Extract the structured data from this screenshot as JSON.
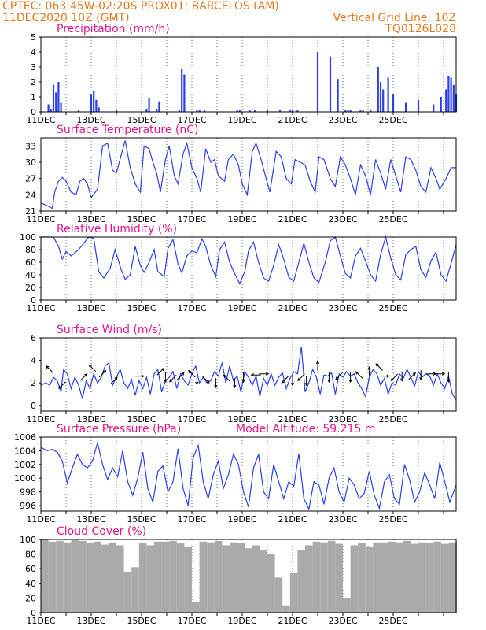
{
  "header": {
    "line1": "CPTEC:   063:45W-02:20S   PROX01: BARCELOS (AM)",
    "line2_left": "11DEC2020 10Z (GMT)",
    "line2_right": "Vertical Grid Line: 10Z",
    "line3_right": "TQ0126L028"
  },
  "colors": {
    "series": "#2a3fe6",
    "cloud": "#aaaaaa",
    "title": "#e0148c",
    "header": "#e07a1c"
  },
  "chart_data": [
    {
      "type": "bar",
      "title": "Precipitation (mm/h)",
      "ylim": [
        0,
        5
      ],
      "yticks": [
        "0",
        "1",
        "2",
        "3",
        "4",
        "5"
      ],
      "xticks": [
        "11DEC",
        "13DEC",
        "15DEC",
        "17DEC",
        "19DEC",
        "21DEC",
        "23DEC",
        "25DEC"
      ],
      "x": [
        0.3,
        0.4,
        0.5,
        0.6,
        0.7,
        0.8,
        1.5,
        2.0,
        2.1,
        2.2,
        2.3,
        3.0,
        4.2,
        4.3,
        4.6,
        4.7,
        5.5,
        5.6,
        5.7,
        6.2,
        6.3,
        6.5,
        7.8,
        7.9,
        8.3,
        8.5,
        9.0,
        9.5,
        9.9,
        10.0,
        10.2,
        11.0,
        11.5,
        11.8,
        12.1,
        12.2,
        12.3,
        12.7,
        12.8,
        13.1,
        13.4,
        13.5,
        13.6,
        13.8,
        14.0,
        14.5,
        15.0,
        15.6,
        15.9,
        16.1,
        16.2,
        16.3,
        16.4,
        16.5
      ],
      "values": [
        0.5,
        0.2,
        1.8,
        1.3,
        2.0,
        0.6,
        0.1,
        1.2,
        1.4,
        0.8,
        0.3,
        0.1,
        0.2,
        0.9,
        0.2,
        0.7,
        0.1,
        2.9,
        2.5,
        0.1,
        0.1,
        0.1,
        0.1,
        0.1,
        0.1,
        0.1,
        0.1,
        0.1,
        0.1,
        0.1,
        0.1,
        4.0,
        3.7,
        2.2,
        0.1,
        0.1,
        0.1,
        0.1,
        0.1,
        0.1,
        3.0,
        2.0,
        1.5,
        2.3,
        1.2,
        0.6,
        0.8,
        0.5,
        1.0,
        1.5,
        2.4,
        2.3,
        1.8,
        1.2
      ]
    },
    {
      "type": "line",
      "title": "Surface Temperature (nC)",
      "ylim": [
        21,
        34.5
      ],
      "yticks": [
        "21",
        "24",
        "27",
        "30",
        "33"
      ],
      "xticks": [
        "11DEC",
        "13DEC",
        "15DEC",
        "17DEC",
        "19DEC",
        "21DEC",
        "23DEC",
        "25DEC"
      ],
      "x": [
        0,
        0.25,
        0.45,
        0.55,
        0.7,
        0.85,
        1.0,
        1.2,
        1.4,
        1.55,
        1.7,
        1.85,
        2.0,
        2.25,
        2.45,
        2.65,
        2.85,
        3.0,
        3.2,
        3.35,
        3.55,
        3.75,
        3.95,
        4.1,
        4.3,
        4.45,
        4.6,
        4.75,
        4.95,
        5.1,
        5.3,
        5.45,
        5.65,
        5.8,
        6.0,
        6.2,
        6.35,
        6.55,
        6.75,
        6.9,
        7.05,
        7.3,
        7.45,
        7.65,
        7.85,
        8.0,
        8.2,
        8.4,
        8.55,
        8.75,
        8.95,
        9.1,
        9.35,
        9.55,
        9.75,
        9.95,
        10.1,
        10.3,
        10.5,
        10.7,
        10.9,
        11.05,
        11.25,
        11.5,
        11.7,
        11.9,
        12.1,
        12.3,
        12.5,
        12.7,
        12.9,
        13.1,
        13.3,
        13.5,
        13.7,
        13.9,
        14.1,
        14.3,
        14.5,
        14.7,
        14.9,
        15.1,
        15.3,
        15.5,
        15.7,
        15.85,
        16.1,
        16.3,
        16.5
      ],
      "values": [
        22.5,
        22.0,
        21.5,
        24.5,
        26.5,
        27.2,
        26.5,
        24.5,
        24.0,
        26.5,
        27.0,
        26.0,
        23.5,
        25.0,
        33.0,
        33.5,
        28.5,
        28.0,
        31.5,
        34.0,
        29.0,
        26.0,
        24.5,
        33.0,
        32.5,
        30.0,
        28.0,
        24.5,
        30.5,
        33.0,
        27.5,
        26.0,
        31.5,
        33.5,
        29.0,
        27.0,
        24.5,
        32.5,
        30.0,
        30.5,
        27.5,
        26.5,
        30.5,
        31.5,
        29.5,
        26.0,
        24.0,
        32.0,
        33.5,
        30.5,
        27.0,
        24.5,
        32.0,
        31.0,
        27.0,
        26.0,
        30.5,
        30.0,
        29.5,
        26.5,
        24.5,
        31.0,
        30.5,
        27.0,
        25.5,
        31.0,
        29.5,
        27.0,
        24.0,
        29.5,
        27.5,
        24.0,
        30.5,
        28.0,
        25.0,
        30.5,
        27.5,
        24.5,
        31.0,
        30.5,
        28.5,
        25.5,
        24.5,
        29.0,
        27.0,
        25.0,
        27.0,
        29.0,
        29.0
      ]
    },
    {
      "type": "line",
      "title": "Relative Humidity (%)",
      "ylim": [
        0,
        100
      ],
      "yticks": [
        "0",
        "20",
        "40",
        "60",
        "80",
        "100"
      ],
      "xticks": [
        "11DEC",
        "13DEC",
        "15DEC",
        "17DEC",
        "19DEC",
        "21DEC",
        "23DEC",
        "25DEC"
      ],
      "x": [
        0,
        0.3,
        0.5,
        0.7,
        0.85,
        1.0,
        1.2,
        1.5,
        1.7,
        1.9,
        2.1,
        2.3,
        2.5,
        2.75,
        2.95,
        3.2,
        3.35,
        3.55,
        3.75,
        3.95,
        4.1,
        4.3,
        4.5,
        4.65,
        4.9,
        5.05,
        5.25,
        5.45,
        5.6,
        5.8,
        6.0,
        6.2,
        6.4,
        6.55,
        6.75,
        6.95,
        7.1,
        7.3,
        7.5,
        7.7,
        7.9,
        8.1,
        8.25,
        8.45,
        8.65,
        8.85,
        9.05,
        9.25,
        9.45,
        9.65,
        9.85,
        10.05,
        10.25,
        10.45,
        10.65,
        10.85,
        11.05,
        11.3,
        11.5,
        11.7,
        11.9,
        12.1,
        12.3,
        12.5,
        12.7,
        12.9,
        13.1,
        13.3,
        13.5,
        13.7,
        13.9,
        14.1,
        14.3,
        14.5,
        14.7,
        14.9,
        15.1,
        15.3,
        15.5,
        15.7,
        15.9,
        16.1,
        16.3,
        16.5
      ],
      "values": [
        100,
        100,
        100,
        85,
        65,
        77,
        70,
        80,
        90,
        100,
        98,
        45,
        35,
        50,
        80,
        47,
        33,
        40,
        85,
        55,
        44,
        60,
        80,
        45,
        37,
        82,
        96,
        57,
        43,
        70,
        78,
        75,
        97,
        85,
        55,
        37,
        80,
        92,
        60,
        42,
        26,
        45,
        78,
        92,
        60,
        35,
        30,
        55,
        88,
        65,
        36,
        30,
        60,
        90,
        60,
        35,
        28,
        60,
        94,
        100,
        70,
        42,
        35,
        70,
        82,
        62,
        40,
        30,
        72,
        100,
        67,
        40,
        32,
        72,
        80,
        85,
        48,
        36,
        62,
        76,
        40,
        30,
        58,
        88
      ]
    },
    {
      "type": "line",
      "title": "Surface Wind (m/s)",
      "ylim": [
        -0.5,
        6
      ],
      "yticks": [
        "0",
        "2",
        "4",
        "6"
      ],
      "xticks": [
        "11DEC",
        "13DEC",
        "15DEC",
        "17DEC",
        "19DEC",
        "21DEC",
        "23DEC",
        "25DEC"
      ],
      "x": [
        0,
        0.2,
        0.35,
        0.5,
        0.65,
        0.8,
        0.9,
        1.05,
        1.2,
        1.35,
        1.5,
        1.65,
        1.8,
        1.95,
        2.1,
        2.25,
        2.4,
        2.55,
        2.7,
        2.85,
        3.0,
        3.15,
        3.3,
        3.45,
        3.6,
        3.75,
        3.9,
        4.05,
        4.2,
        4.35,
        4.5,
        4.65,
        4.8,
        4.95,
        5.1,
        5.25,
        5.4,
        5.55,
        5.7,
        5.85,
        6.0,
        6.15,
        6.3,
        6.45,
        6.6,
        6.75,
        6.9,
        7.05,
        7.2,
        7.35,
        7.5,
        7.65,
        7.8,
        7.95,
        8.1,
        8.25,
        8.4,
        8.55,
        8.7,
        8.85,
        9.0,
        9.15,
        9.3,
        9.45,
        9.6,
        9.75,
        9.9,
        10.05,
        10.2,
        10.35,
        10.5,
        10.65,
        10.8,
        10.95,
        11.1,
        11.25,
        11.4,
        11.55,
        11.7,
        11.85,
        12.0,
        12.15,
        12.3,
        12.45,
        12.6,
        12.75,
        12.9,
        13.05,
        13.2,
        13.35,
        13.5,
        13.65,
        13.8,
        13.95,
        14.1,
        14.25,
        14.4,
        14.55,
        14.7,
        14.85,
        15.0,
        15.15,
        15.3,
        15.45,
        15.6,
        15.75,
        15.9,
        16.05,
        16.2,
        16.35,
        16.5
      ],
      "values": [
        1.8,
        2.0,
        1.8,
        2.5,
        2.2,
        1.2,
        3.2,
        2.8,
        1.5,
        2.5,
        1.8,
        0.6,
        2.2,
        1.5,
        2.8,
        2.0,
        2.5,
        3.5,
        3.8,
        1.8,
        2.5,
        3.2,
        2.0,
        1.5,
        2.3,
        0.9,
        2.2,
        1.5,
        2.5,
        1.0,
        2.8,
        3.2,
        1.2,
        2.2,
        2.5,
        3.0,
        1.5,
        2.8,
        2.2,
        1.8,
        2.8,
        3.5,
        2.0,
        2.5,
        2.0,
        2.2,
        3.0,
        2.6,
        3.8,
        2.0,
        3.5,
        2.2,
        2.6,
        1.2,
        3.0,
        2.5,
        1.8,
        2.6,
        0.8,
        2.4,
        1.8,
        2.8,
        1.8,
        2.5,
        2.9,
        1.5,
        2.4,
        3.0,
        2.8,
        5.2,
        1.2,
        2.0,
        3.2,
        2.5,
        1.0,
        2.7,
        2.6,
        2.9,
        1.0,
        2.8,
        2.5,
        3.0,
        2.6,
        2.8,
        2.0,
        1.5,
        0.8,
        2.5,
        3.2,
        2.8,
        1.8,
        2.4,
        1.0,
        2.0,
        1.8,
        2.8,
        2.4,
        3.2,
        2.5,
        1.7,
        3.0,
        2.5,
        2.8,
        2.6,
        1.8,
        2.8,
        2.0,
        1.5,
        2.6,
        1.0,
        0.5
      ],
      "arrows": [
        {
          "x": 0.35,
          "y": 3.2,
          "dir": "nw"
        },
        {
          "x": 0.85,
          "y": 1.8,
          "dir": "sw"
        },
        {
          "x": 1.7,
          "y": 2.5,
          "dir": "ne"
        },
        {
          "x": 2.05,
          "y": 3.3,
          "dir": "nw"
        },
        {
          "x": 2.45,
          "y": 2.8,
          "dir": "ne"
        },
        {
          "x": 2.9,
          "y": 2.2,
          "dir": "ne"
        },
        {
          "x": 3.9,
          "y": 2.6,
          "dir": "e"
        },
        {
          "x": 4.75,
          "y": 3.0,
          "dir": "ne"
        },
        {
          "x": 4.95,
          "y": 2.5,
          "dir": "s"
        },
        {
          "x": 5.25,
          "y": 2.4,
          "dir": "sw"
        },
        {
          "x": 5.55,
          "y": 2.6,
          "dir": "ne"
        },
        {
          "x": 6.0,
          "y": 2.8,
          "dir": "nw"
        },
        {
          "x": 6.2,
          "y": 2.3,
          "dir": "s"
        },
        {
          "x": 6.55,
          "y": 2.3,
          "dir": "se"
        },
        {
          "x": 6.95,
          "y": 2.0,
          "dir": "s"
        },
        {
          "x": 7.4,
          "y": 2.4,
          "dir": "nw"
        },
        {
          "x": 7.7,
          "y": 2.0,
          "dir": "s"
        },
        {
          "x": 8.05,
          "y": 2.5,
          "dir": "s"
        },
        {
          "x": 8.55,
          "y": 2.7,
          "dir": "w"
        },
        {
          "x": 8.85,
          "y": 2.8,
          "dir": "e"
        },
        {
          "x": 9.7,
          "y": 2.3,
          "dir": "sw"
        },
        {
          "x": 10.0,
          "y": 2.2,
          "dir": "s"
        },
        {
          "x": 10.35,
          "y": 2.5,
          "dir": "sw"
        },
        {
          "x": 10.55,
          "y": 2.2,
          "dir": "s"
        },
        {
          "x": 11.0,
          "y": 3.5,
          "dir": "n"
        },
        {
          "x": 11.45,
          "y": 2.5,
          "dir": "s"
        },
        {
          "x": 11.85,
          "y": 2.6,
          "dir": "sw"
        },
        {
          "x": 12.3,
          "y": 2.5,
          "dir": "s"
        },
        {
          "x": 12.65,
          "y": 2.7,
          "dir": "nw"
        },
        {
          "x": 13.05,
          "y": 3.0,
          "dir": "n"
        },
        {
          "x": 13.45,
          "y": 3.4,
          "dir": "nw"
        },
        {
          "x": 13.65,
          "y": 2.6,
          "dir": "e"
        },
        {
          "x": 14.05,
          "y": 2.5,
          "dir": "sw"
        },
        {
          "x": 14.35,
          "y": 2.6,
          "dir": "s"
        },
        {
          "x": 14.75,
          "y": 2.6,
          "dir": "ne"
        },
        {
          "x": 15.1,
          "y": 2.7,
          "dir": "s"
        },
        {
          "x": 15.5,
          "y": 2.8,
          "dir": "e"
        },
        {
          "x": 15.85,
          "y": 2.8,
          "dir": "e"
        },
        {
          "x": 16.2,
          "y": 2.5,
          "dir": "s"
        }
      ]
    },
    {
      "type": "line",
      "title": "Surface Pressure (hPa)",
      "subtitle": "Model Altitude: 59.215 m",
      "ylim": [
        995.2,
        1006
      ],
      "yticks": [
        "996",
        "998",
        "1000",
        "1002",
        "1004",
        "1006"
      ],
      "xticks": [
        "11DEC",
        "13DEC",
        "15DEC",
        "17DEC",
        "19DEC",
        "21DEC",
        "23DEC",
        "25DEC"
      ],
      "x": [
        0,
        0.25,
        0.45,
        0.65,
        0.85,
        1.05,
        1.25,
        1.45,
        1.65,
        1.85,
        2.05,
        2.25,
        2.45,
        2.65,
        2.85,
        3.05,
        3.25,
        3.45,
        3.65,
        3.85,
        4.05,
        4.25,
        4.45,
        4.65,
        4.85,
        5.05,
        5.25,
        5.45,
        5.65,
        5.85,
        6.05,
        6.25,
        6.45,
        6.65,
        6.85,
        7.05,
        7.25,
        7.45,
        7.65,
        7.85,
        8.05,
        8.25,
        8.45,
        8.65,
        8.85,
        9.05,
        9.25,
        9.45,
        9.65,
        9.85,
        10.05,
        10.25,
        10.45,
        10.65,
        10.85,
        11.05,
        11.25,
        11.45,
        11.65,
        11.85,
        12.05,
        12.25,
        12.45,
        12.65,
        12.85,
        13.05,
        13.25,
        13.45,
        13.65,
        13.85,
        14.05,
        14.25,
        14.45,
        14.65,
        14.85,
        15.05,
        15.25,
        15.45,
        15.65,
        15.85,
        16.05,
        16.25,
        16.5
      ],
      "values": [
        1004.5,
        1004.0,
        1004.2,
        1003.8,
        1002.5,
        999.3,
        1001.5,
        1003.5,
        1002.0,
        1001.5,
        1002.5,
        1005.2,
        1002.0,
        999.8,
        1001.5,
        1000.2,
        1004.0,
        999.5,
        997.5,
        1000.0,
        1003.8,
        998.5,
        996.5,
        1001.0,
        1001.8,
        998.0,
        999.5,
        1004.3,
        998.5,
        996.0,
        1003.0,
        1004.8,
        999.5,
        997.0,
        1000.5,
        1002.5,
        998.5,
        1000.5,
        1003.5,
        1002.0,
        998.0,
        995.8,
        1001.5,
        1003.5,
        998.0,
        997.0,
        1002.0,
        999.5,
        997.0,
        999.5,
        998.8,
        1003.6,
        997.0,
        995.5,
        999.5,
        999.0,
        996.2,
        1000.0,
        1001.5,
        998.0,
        996.5,
        1000.0,
        999.0,
        997.0,
        997.8,
        1001.0,
        997.5,
        995.6,
        999.5,
        1000.5,
        997.0,
        996.2,
        1002.0,
        999.8,
        996.5,
        998.0,
        1000.8,
        999.0,
        997.0,
        1002.3,
        999.5,
        996.5,
        999.0
      ]
    },
    {
      "type": "bar",
      "title": "Cloud Cover (%)",
      "ylim": [
        0,
        100
      ],
      "yticks": [
        "0",
        "20",
        "40",
        "60",
        "80",
        "100"
      ],
      "xticks": [
        "11DEC",
        "13DEC",
        "15DEC",
        "17DEC",
        "19DEC",
        "21DEC",
        "23DEC",
        "25DEC"
      ],
      "x": [
        0,
        0.3,
        0.6,
        0.9,
        1.2,
        1.5,
        1.8,
        2.1,
        2.4,
        2.7,
        3.0,
        3.3,
        3.6,
        3.9,
        4.2,
        4.5,
        4.8,
        5.1,
        5.4,
        5.7,
        6.0,
        6.3,
        6.6,
        6.9,
        7.2,
        7.5,
        7.8,
        8.1,
        8.4,
        8.7,
        9.0,
        9.3,
        9.6,
        9.9,
        10.2,
        10.5,
        10.8,
        11.1,
        11.4,
        11.7,
        12.0,
        12.3,
        12.6,
        12.9,
        13.2,
        13.5,
        13.8,
        14.1,
        14.4,
        14.7,
        15.0,
        15.3,
        15.6,
        15.9,
        16.2,
        16.5
      ],
      "values": [
        100,
        97,
        98,
        96,
        99,
        98,
        95,
        97,
        93,
        96,
        92,
        56,
        62,
        95,
        92,
        97,
        97,
        98,
        95,
        90,
        15,
        97,
        96,
        98,
        92,
        96,
        95,
        88,
        92,
        85,
        80,
        48,
        10,
        55,
        85,
        92,
        97,
        96,
        98,
        94,
        20,
        92,
        95,
        90,
        96,
        96,
        97,
        96,
        98,
        94,
        96,
        95,
        97,
        94,
        96,
        98
      ]
    }
  ]
}
